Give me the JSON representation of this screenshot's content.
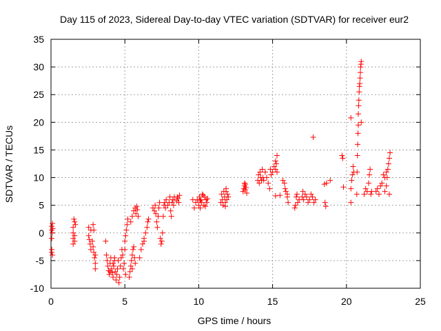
{
  "chart_data": {
    "type": "scatter",
    "title": "Day 115 of 2023, Sidereal Day-to-day VTEC variation (SDTVAR) for receiver eur2",
    "xlabel": "GPS time / hours",
    "ylabel": "SDTVAR / TECUs",
    "xlim": [
      0,
      25
    ],
    "ylim": [
      -10,
      35
    ],
    "xticks": [
      0,
      5,
      10,
      15,
      20,
      25
    ],
    "yticks": [
      -10,
      -5,
      0,
      5,
      10,
      15,
      20,
      25,
      30,
      35
    ],
    "grid": true,
    "marker": "+",
    "color": "#ff0000",
    "series": [
      {
        "name": "eur2",
        "points": [
          [
            0.05,
            -3.5
          ],
          [
            0.05,
            -3.0
          ],
          [
            0.05,
            -1.0
          ],
          [
            0.05,
            0.5
          ],
          [
            0.05,
            1.2
          ],
          [
            0.08,
            0.0
          ],
          [
            0.1,
            1.7
          ],
          [
            0.1,
            -4.0
          ],
          [
            0.12,
            0.8
          ],
          [
            1.5,
            -2.0
          ],
          [
            1.5,
            -1.0
          ],
          [
            1.5,
            0.0
          ],
          [
            1.5,
            1.0
          ],
          [
            1.55,
            2.5
          ],
          [
            1.6,
            2.0
          ],
          [
            1.6,
            -0.5
          ],
          [
            1.65,
            1.5
          ],
          [
            1.6,
            -1.5
          ],
          [
            2.55,
            1.0
          ],
          [
            2.55,
            -0.5
          ],
          [
            2.6,
            -1.2
          ],
          [
            2.65,
            -2.0
          ],
          [
            2.7,
            -3.0
          ],
          [
            2.7,
            0.5
          ],
          [
            2.8,
            -1.5
          ],
          [
            2.85,
            -2.5
          ],
          [
            2.9,
            -3.5
          ],
          [
            2.95,
            -4.5
          ],
          [
            3.0,
            -5.5
          ],
          [
            3.0,
            -6.5
          ],
          [
            2.9,
            0.5
          ],
          [
            2.85,
            1.5
          ],
          [
            3.0,
            -4.0
          ],
          [
            3.7,
            -1.5
          ],
          [
            3.75,
            -4.0
          ],
          [
            3.8,
            -5.0
          ],
          [
            3.85,
            -6.0
          ],
          [
            3.9,
            -6.8
          ],
          [
            3.95,
            -7.5
          ],
          [
            4.0,
            -7.0
          ],
          [
            4.0,
            -5.5
          ],
          [
            4.05,
            -4.5
          ],
          [
            4.1,
            -6.5
          ],
          [
            4.15,
            -7.2
          ],
          [
            4.2,
            -8.0
          ],
          [
            4.25,
            -6.0
          ],
          [
            4.3,
            -5.0
          ],
          [
            4.35,
            -7.0
          ],
          [
            4.4,
            -8.5
          ],
          [
            4.45,
            -7.5
          ],
          [
            4.5,
            -6.5
          ],
          [
            4.55,
            -5.0
          ],
          [
            4.6,
            -9.0
          ],
          [
            4.65,
            -8.0
          ],
          [
            4.7,
            -6.0
          ],
          [
            4.75,
            -4.5
          ],
          [
            4.8,
            -3.0
          ],
          [
            4.85,
            -4.0
          ],
          [
            4.2,
            -5.5
          ],
          [
            4.3,
            -4.5
          ],
          [
            4.9,
            -6.5
          ],
          [
            4.95,
            -5.5
          ],
          [
            5.0,
            -1.5
          ],
          [
            5.05,
            -0.5
          ],
          [
            5.1,
            0.5
          ],
          [
            5.15,
            1.5
          ],
          [
            5.2,
            2.5
          ],
          [
            5.0,
            -3.0
          ],
          [
            5.05,
            -7.5
          ],
          [
            5.35,
            -7.0
          ],
          [
            5.4,
            -6.0
          ],
          [
            5.45,
            -5.0
          ],
          [
            5.5,
            -4.0
          ],
          [
            5.55,
            -3.0
          ],
          [
            5.6,
            -2.5
          ],
          [
            5.65,
            -4.5
          ],
          [
            5.5,
            3.0
          ],
          [
            5.6,
            4.0
          ],
          [
            5.7,
            4.5
          ],
          [
            5.75,
            3.5
          ],
          [
            5.8,
            4.8
          ],
          [
            5.85,
            4.2
          ],
          [
            5.9,
            3.0
          ],
          [
            5.5,
            -6.5
          ],
          [
            5.3,
            -8.0
          ],
          [
            5.4,
            2.0
          ],
          [
            5.7,
            -5.5
          ],
          [
            6.0,
            -4.5
          ],
          [
            6.1,
            -3.0
          ],
          [
            6.2,
            -2.0
          ],
          [
            6.3,
            -1.0
          ],
          [
            6.4,
            0.0
          ],
          [
            6.5,
            1.0
          ],
          [
            6.55,
            2.0
          ],
          [
            6.6,
            2.5
          ],
          [
            6.3,
            -1.5
          ],
          [
            6.9,
            4.5
          ],
          [
            7.0,
            4.0
          ],
          [
            7.05,
            5.0
          ],
          [
            7.1,
            3.5
          ],
          [
            7.15,
            2.0
          ],
          [
            7.2,
            1.0
          ],
          [
            7.25,
            3.0
          ],
          [
            7.3,
            4.5
          ],
          [
            7.35,
            5.5
          ],
          [
            7.4,
            -1.0
          ],
          [
            7.45,
            -2.0
          ],
          [
            7.5,
            -1.5
          ],
          [
            7.55,
            0.0
          ],
          [
            7.6,
            3.0
          ],
          [
            7.65,
            5.0
          ],
          [
            7.7,
            5.5
          ],
          [
            7.75,
            4.5
          ],
          [
            7.8,
            6.0
          ],
          [
            7.9,
            5.0
          ],
          [
            8.0,
            5.5
          ],
          [
            8.05,
            6.5
          ],
          [
            8.1,
            4.0
          ],
          [
            8.15,
            3.0
          ],
          [
            8.2,
            5.5
          ],
          [
            8.25,
            6.0
          ],
          [
            8.3,
            5.0
          ],
          [
            8.35,
            6.5
          ],
          [
            8.5,
            5.8
          ],
          [
            8.55,
            6.5
          ],
          [
            8.6,
            6.2
          ],
          [
            8.65,
            5.5
          ],
          [
            8.7,
            6.8
          ],
          [
            9.6,
            6.0
          ],
          [
            9.7,
            4.5
          ],
          [
            9.8,
            5.5
          ],
          [
            9.9,
            6.0
          ],
          [
            10.0,
            5.0
          ],
          [
            10.05,
            6.5
          ],
          [
            10.1,
            4.5
          ],
          [
            10.15,
            6.0
          ],
          [
            10.2,
            5.5
          ],
          [
            10.3,
            6.8
          ],
          [
            10.35,
            5.0
          ],
          [
            10.4,
            6.5
          ],
          [
            10.45,
            4.8
          ],
          [
            10.5,
            6.0
          ],
          [
            10.55,
            5.5
          ],
          [
            10.6,
            6.2
          ],
          [
            10.25,
            7.0
          ],
          [
            10.1,
            5.8
          ],
          [
            11.5,
            5.5
          ],
          [
            11.55,
            7.0
          ],
          [
            11.6,
            6.0
          ],
          [
            11.65,
            5.0
          ],
          [
            11.7,
            7.5
          ],
          [
            11.75,
            6.5
          ],
          [
            11.8,
            5.5
          ],
          [
            11.85,
            8.0
          ],
          [
            11.9,
            6.0
          ],
          [
            11.95,
            7.0
          ],
          [
            12.0,
            6.5
          ],
          [
            11.8,
            4.8
          ],
          [
            11.85,
            7.5
          ],
          [
            13.0,
            7.5
          ],
          [
            13.05,
            8.0
          ],
          [
            13.1,
            8.5
          ],
          [
            13.15,
            7.8
          ],
          [
            13.2,
            8.2
          ],
          [
            13.25,
            7.2
          ],
          [
            13.1,
            9.0
          ],
          [
            13.15,
            8.8
          ],
          [
            14.0,
            9.5
          ],
          [
            14.05,
            10.5
          ],
          [
            14.1,
            9.0
          ],
          [
            14.15,
            11.0
          ],
          [
            14.2,
            10.0
          ],
          [
            14.25,
            9.5
          ],
          [
            14.3,
            11.5
          ],
          [
            14.35,
            10.0
          ],
          [
            14.4,
            9.5
          ],
          [
            14.5,
            11.0
          ],
          [
            14.6,
            10.0
          ],
          [
            14.7,
            9.0
          ],
          [
            14.8,
            8.0
          ],
          [
            14.85,
            11.5
          ],
          [
            14.9,
            10.5
          ],
          [
            15.0,
            11.0
          ],
          [
            15.1,
            12.0
          ],
          [
            15.2,
            11.5
          ],
          [
            15.25,
            12.5
          ],
          [
            15.3,
            11.0
          ],
          [
            15.3,
            14.0
          ],
          [
            15.2,
            13.0
          ],
          [
            15.2,
            6.7
          ],
          [
            15.5,
            6.8
          ],
          [
            15.7,
            9.5
          ],
          [
            15.8,
            9.0
          ],
          [
            15.85,
            8.0
          ],
          [
            15.9,
            7.5
          ],
          [
            16.0,
            7.0
          ],
          [
            16.0,
            6.5
          ],
          [
            16.05,
            5.5
          ],
          [
            16.5,
            4.5
          ],
          [
            16.55,
            5.0
          ],
          [
            16.6,
            6.5
          ],
          [
            16.65,
            7.0
          ],
          [
            16.7,
            5.5
          ],
          [
            16.8,
            6.0
          ],
          [
            17.0,
            6.5
          ],
          [
            17.05,
            7.5
          ],
          [
            17.1,
            6.0
          ],
          [
            17.2,
            7.0
          ],
          [
            17.3,
            6.5
          ],
          [
            17.4,
            5.5
          ],
          [
            17.5,
            6.0
          ],
          [
            17.6,
            7.0
          ],
          [
            17.7,
            6.5
          ],
          [
            17.75,
            17.3
          ],
          [
            17.8,
            5.5
          ],
          [
            17.9,
            6.0
          ],
          [
            18.5,
            8.8
          ],
          [
            18.55,
            5.5
          ],
          [
            18.6,
            4.8
          ],
          [
            18.65,
            9.0
          ],
          [
            18.9,
            9.5
          ],
          [
            19.7,
            14.0
          ],
          [
            19.75,
            13.5
          ],
          [
            19.8,
            8.3
          ],
          [
            20.3,
            20.8
          ],
          [
            20.3,
            5.5
          ],
          [
            20.35,
            9.5
          ],
          [
            20.4,
            10.5
          ],
          [
            20.45,
            12.0
          ],
          [
            20.5,
            11.0
          ],
          [
            20.3,
            8.0
          ],
          [
            20.7,
            7.0
          ],
          [
            20.72,
            11.0
          ],
          [
            20.74,
            14.0
          ],
          [
            20.76,
            16.0
          ],
          [
            20.78,
            18.0
          ],
          [
            20.8,
            19.5
          ],
          [
            20.8,
            21.5
          ],
          [
            20.82,
            23.0
          ],
          [
            20.84,
            24.0
          ],
          [
            20.86,
            25.5
          ],
          [
            20.88,
            26.5
          ],
          [
            20.9,
            27.0
          ],
          [
            20.92,
            28.0
          ],
          [
            20.94,
            29.0
          ],
          [
            20.96,
            30.0
          ],
          [
            20.98,
            30.5
          ],
          [
            21.0,
            31.0
          ],
          [
            21.0,
            20.0
          ],
          [
            21.2,
            7.0
          ],
          [
            21.3,
            8.0
          ],
          [
            21.4,
            7.5
          ],
          [
            21.5,
            9.0
          ],
          [
            21.55,
            10.5
          ],
          [
            21.6,
            11.5
          ],
          [
            21.65,
            7.0
          ],
          [
            21.7,
            7.5
          ],
          [
            22.0,
            7.5
          ],
          [
            22.1,
            8.0
          ],
          [
            22.2,
            7.0
          ],
          [
            22.3,
            8.5
          ],
          [
            22.4,
            9.0
          ],
          [
            22.5,
            10.5
          ],
          [
            22.6,
            7.5
          ],
          [
            22.7,
            8.5
          ],
          [
            22.75,
            10.0
          ],
          [
            22.8,
            11.5
          ],
          [
            22.85,
            12.5
          ],
          [
            22.9,
            13.5
          ],
          [
            22.95,
            14.5
          ],
          [
            22.9,
            7.0
          ],
          [
            22.7,
            11.0
          ],
          [
            22.6,
            10.0
          ]
        ]
      }
    ]
  }
}
